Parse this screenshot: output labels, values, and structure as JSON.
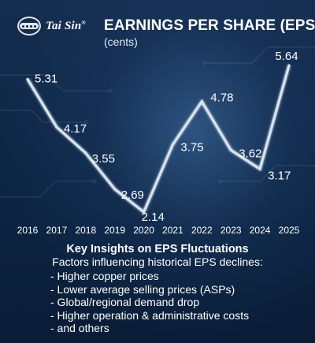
{
  "brand": {
    "name": "Tai Sin",
    "mark": "®"
  },
  "header": {
    "title": "EARNINGS PER SHARE (EPS)",
    "subtitle": "(cents)"
  },
  "colors": {
    "line": "#d8e3f0",
    "background": "#0d2544",
    "text": "#ffffff"
  },
  "chart_data": {
    "type": "line",
    "title": "EARNINGS PER SHARE (EPS)",
    "ylabel": "(cents)",
    "xlabel": "",
    "categories": [
      "2016",
      "2017",
      "2018",
      "2019",
      "2020",
      "2021",
      "2022",
      "2023",
      "2024",
      "2025"
    ],
    "series": [
      {
        "values": [
          5.31,
          4.17,
          3.55,
          2.69,
          2.14,
          3.75,
          4.78,
          3.62,
          3.17,
          5.64
        ]
      }
    ],
    "labels": [
      "5.31",
      "4.17",
      "3.55",
      "2.69",
      "2.14",
      "3.75",
      "4.78",
      "3.62",
      "3.17",
      "5.64"
    ],
    "ylim": [
      2.0,
      5.8
    ],
    "grid": false,
    "legend": "none"
  },
  "insights": {
    "title": "Key Insights on EPS Fluctuations",
    "intro": "Factors influencing historical EPS declines:",
    "items": [
      "- Higher copper prices",
      "- Lower average selling prices (ASPs)",
      "- Global/regional demand drop",
      "- Higher operation & administrative costs",
      "- and others"
    ]
  }
}
